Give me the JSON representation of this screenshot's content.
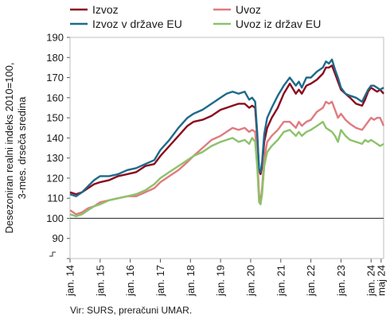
{
  "chart_data": {
    "type": "line",
    "ylabel_lines": [
      "Desezoniran realni indeks 2010=100,",
      "3-mes. drseča sredina"
    ],
    "ylim": [
      80,
      190
    ],
    "yticks": [
      80,
      90,
      100,
      110,
      120,
      130,
      140,
      150,
      160,
      170,
      180,
      190
    ],
    "ytick_labels": [
      "",
      "90",
      "100",
      "110",
      "120",
      "130",
      "140",
      "150",
      "160",
      "170",
      "180",
      "190"
    ],
    "xlim": [
      2014.0,
      2024.4167
    ],
    "xticks": [
      {
        "x": 2014.0,
        "label": "jan. 14"
      },
      {
        "x": 2015.0,
        "label": "jan. 15"
      },
      {
        "x": 2016.0,
        "label": "jan. 16"
      },
      {
        "x": 2017.0,
        "label": "jan. 17"
      },
      {
        "x": 2018.0,
        "label": "jan. 18"
      },
      {
        "x": 2019.0,
        "label": "jan. 19"
      },
      {
        "x": 2020.0,
        "label": "jan. 20"
      },
      {
        "x": 2021.0,
        "label": "jan. 21"
      },
      {
        "x": 2022.0,
        "label": "jan. 22"
      },
      {
        "x": 2023.0,
        "label": "jan. 23"
      },
      {
        "x": 2024.0,
        "label": "jan. 24"
      },
      {
        "x": 2024.3333,
        "label": "maj 24"
      }
    ],
    "reference_line": 100,
    "grid": false,
    "legend_position": "top",
    "series": [
      {
        "name": "Izvoz",
        "color": "#8b0a1e",
        "x": [
          2014.0,
          2014.2,
          2014.4,
          2014.6,
          2014.8,
          2015.0,
          2015.3,
          2015.6,
          2015.9,
          2016.2,
          2016.5,
          2016.8,
          2017.0,
          2017.3,
          2017.6,
          2017.9,
          2018.1,
          2018.4,
          2018.7,
          2019.0,
          2019.2,
          2019.4,
          2019.6,
          2019.8,
          2019.95,
          2020.05,
          2020.15,
          2020.22,
          2020.28,
          2020.33,
          2020.38,
          2020.45,
          2020.55,
          2020.7,
          2020.9,
          2021.1,
          2021.3,
          2021.5,
          2021.6,
          2021.7,
          2021.85,
          2022.0,
          2022.2,
          2022.4,
          2022.5,
          2022.6,
          2022.7,
          2022.8,
          2022.9,
          2023.0,
          2023.15,
          2023.3,
          2023.5,
          2023.7,
          2023.8,
          2023.9,
          2024.0,
          2024.1,
          2024.2,
          2024.3,
          2024.4167
        ],
        "y": [
          113,
          112,
          113,
          115,
          117,
          118,
          119,
          121,
          122,
          123,
          126,
          127,
          131,
          136,
          141,
          146,
          148,
          149,
          151,
          154,
          155,
          156,
          157,
          157,
          155,
          156,
          155,
          140,
          124,
          122,
          126,
          138,
          145,
          150,
          155,
          162,
          167,
          162,
          164,
          162,
          166,
          167,
          169,
          172,
          175,
          175,
          176,
          172,
          168,
          164,
          162,
          160,
          157,
          156,
          159,
          163,
          165,
          164,
          163,
          164,
          162
        ]
      },
      {
        "name": "Uvoz",
        "color": "#e07b80",
        "x": [
          2014.0,
          2014.2,
          2014.4,
          2014.6,
          2014.8,
          2015.0,
          2015.3,
          2015.6,
          2015.9,
          2016.2,
          2016.5,
          2016.8,
          2017.0,
          2017.3,
          2017.6,
          2017.9,
          2018.1,
          2018.4,
          2018.7,
          2019.0,
          2019.2,
          2019.4,
          2019.6,
          2019.8,
          2019.95,
          2020.05,
          2020.15,
          2020.22,
          2020.28,
          2020.33,
          2020.38,
          2020.45,
          2020.55,
          2020.7,
          2020.9,
          2021.1,
          2021.3,
          2021.5,
          2021.6,
          2021.7,
          2021.85,
          2022.0,
          2022.2,
          2022.4,
          2022.5,
          2022.6,
          2022.7,
          2022.8,
          2022.9,
          2023.0,
          2023.15,
          2023.3,
          2023.5,
          2023.7,
          2023.8,
          2023.9,
          2024.0,
          2024.1,
          2024.2,
          2024.3,
          2024.4167
        ],
        "y": [
          104,
          102,
          103,
          105,
          106,
          108,
          109,
          110,
          111,
          111,
          113,
          115,
          118,
          121,
          124,
          128,
          131,
          135,
          139,
          141,
          143,
          145,
          144,
          145,
          143,
          144,
          143,
          130,
          112,
          108,
          115,
          130,
          138,
          141,
          144,
          148,
          148,
          145,
          148,
          146,
          148,
          149,
          153,
          155,
          158,
          157,
          158,
          154,
          150,
          152,
          149,
          147,
          145,
          144,
          146,
          148,
          150,
          149,
          150,
          150,
          146
        ]
      },
      {
        "name": "Izvoz v države EU",
        "color": "#1e6a8a",
        "x": [
          2014.0,
          2014.2,
          2014.4,
          2014.6,
          2014.8,
          2015.0,
          2015.3,
          2015.6,
          2015.9,
          2016.2,
          2016.5,
          2016.8,
          2017.0,
          2017.3,
          2017.6,
          2017.9,
          2018.1,
          2018.4,
          2018.7,
          2019.0,
          2019.2,
          2019.4,
          2019.6,
          2019.8,
          2019.95,
          2020.05,
          2020.15,
          2020.22,
          2020.28,
          2020.33,
          2020.38,
          2020.45,
          2020.55,
          2020.7,
          2020.9,
          2021.1,
          2021.3,
          2021.5,
          2021.6,
          2021.7,
          2021.85,
          2022.0,
          2022.2,
          2022.4,
          2022.5,
          2022.6,
          2022.7,
          2022.8,
          2022.9,
          2023.0,
          2023.15,
          2023.3,
          2023.5,
          2023.7,
          2023.8,
          2023.9,
          2024.0,
          2024.1,
          2024.2,
          2024.3,
          2024.4167
        ],
        "y": [
          112,
          111,
          113,
          116,
          119,
          121,
          121,
          122,
          124,
          125,
          127,
          129,
          134,
          139,
          145,
          150,
          152,
          154,
          157,
          160,
          162,
          163,
          162,
          163,
          159,
          160,
          158,
          142,
          124,
          123,
          128,
          142,
          150,
          155,
          161,
          166,
          170,
          166,
          168,
          165,
          170,
          170,
          173,
          175,
          178,
          177,
          179,
          174,
          170,
          165,
          162,
          161,
          160,
          158,
          161,
          164,
          166,
          166,
          165,
          164,
          165
        ]
      },
      {
        "name": "Uvoz iz držav EU",
        "color": "#8cc26a",
        "x": [
          2014.0,
          2014.2,
          2014.4,
          2014.6,
          2014.8,
          2015.0,
          2015.3,
          2015.6,
          2015.9,
          2016.2,
          2016.5,
          2016.8,
          2017.0,
          2017.3,
          2017.6,
          2017.9,
          2018.1,
          2018.4,
          2018.7,
          2019.0,
          2019.2,
          2019.4,
          2019.6,
          2019.8,
          2019.95,
          2020.05,
          2020.15,
          2020.22,
          2020.28,
          2020.33,
          2020.38,
          2020.45,
          2020.55,
          2020.7,
          2020.9,
          2021.1,
          2021.3,
          2021.5,
          2021.6,
          2021.7,
          2021.85,
          2022.0,
          2022.2,
          2022.4,
          2022.5,
          2022.6,
          2022.7,
          2022.8,
          2022.9,
          2023.0,
          2023.15,
          2023.3,
          2023.5,
          2023.7,
          2023.8,
          2023.9,
          2024.0,
          2024.1,
          2024.2,
          2024.3,
          2024.4167
        ],
        "y": [
          102,
          101,
          102,
          104,
          106,
          107,
          109,
          110,
          111,
          112,
          114,
          117,
          120,
          123,
          126,
          129,
          131,
          133,
          136,
          138,
          139,
          140,
          138,
          139,
          137,
          140,
          138,
          125,
          108,
          107,
          112,
          126,
          133,
          136,
          139,
          143,
          144,
          141,
          143,
          141,
          143,
          144,
          146,
          148,
          145,
          144,
          143,
          141,
          138,
          144,
          141,
          139,
          138,
          137,
          139,
          138,
          139,
          138,
          137,
          136,
          137
        ]
      }
    ]
  },
  "source": "Vir: SURS, preračuni UMAR."
}
